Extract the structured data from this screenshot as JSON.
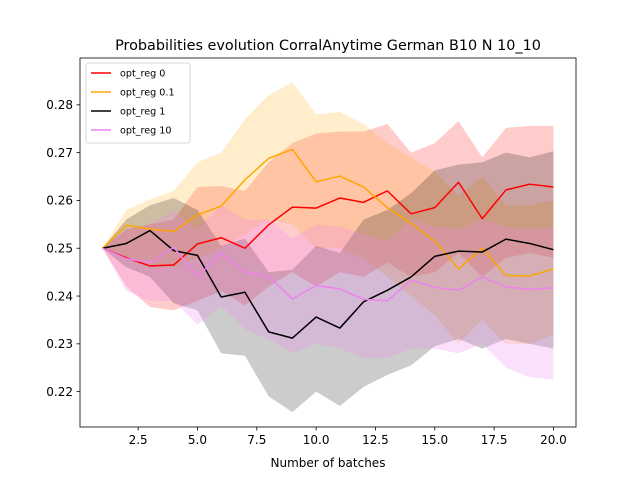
{
  "chart_data": {
    "type": "line",
    "title": "Probabilities evolution CorralAnytime German B10 N 10_10",
    "xlabel": "Number of batches",
    "ylabel": "",
    "xlim": [
      0.05,
      20.95
    ],
    "ylim": [
      0.2126,
      0.2898
    ],
    "xticks": [
      2.5,
      5.0,
      7.5,
      10.0,
      12.5,
      15.0,
      17.5,
      20.0
    ],
    "xtick_labels": [
      "2.5",
      "5.0",
      "7.5",
      "10.0",
      "12.5",
      "15.0",
      "17.5",
      "20.0"
    ],
    "yticks": [
      0.22,
      0.23,
      0.24,
      0.25,
      0.26,
      0.27,
      0.28
    ],
    "ytick_labels": [
      "0.22",
      "0.23",
      "0.24",
      "0.25",
      "0.26",
      "0.27",
      "0.28"
    ],
    "legend_position": "top-left",
    "x": [
      1,
      2,
      3,
      4,
      5,
      6,
      7,
      8,
      9,
      10,
      11,
      12,
      13,
      14,
      15,
      16,
      17,
      18,
      19,
      20
    ],
    "series": [
      {
        "name": "opt_reg 0",
        "color": "#ff0000",
        "band_alpha": 0.2,
        "values": [
          0.25,
          0.248,
          0.2463,
          0.2465,
          0.2509,
          0.2522,
          0.25,
          0.2549,
          0.2586,
          0.2584,
          0.2605,
          0.2596,
          0.262,
          0.2572,
          0.2585,
          0.2638,
          0.2562,
          0.2622,
          0.2634,
          0.2628
        ],
        "lower": [
          0.25,
          0.242,
          0.2377,
          0.237,
          0.239,
          0.241,
          0.238,
          0.242,
          0.245,
          0.242,
          0.245,
          0.244,
          0.247,
          0.244,
          0.245,
          0.249,
          0.244,
          0.248,
          0.249,
          0.248
        ],
        "upper": [
          0.25,
          0.254,
          0.255,
          0.256,
          0.2628,
          0.263,
          0.262,
          0.268,
          0.272,
          0.274,
          0.2744,
          0.2744,
          0.276,
          0.27,
          0.272,
          0.2766,
          0.269,
          0.2752,
          0.2756,
          0.2756
        ]
      },
      {
        "name": "opt_reg 0.1",
        "color": "#ffa500",
        "band_alpha": 0.2,
        "values": [
          0.25,
          0.2548,
          0.254,
          0.2535,
          0.257,
          0.2588,
          0.2643,
          0.2688,
          0.2707,
          0.2639,
          0.2651,
          0.2628,
          0.2585,
          0.2552,
          0.2515,
          0.2457,
          0.25,
          0.2443,
          0.2442,
          0.2457
        ],
        "lower": [
          0.25,
          0.248,
          0.246,
          0.246,
          0.248,
          0.25,
          0.253,
          0.256,
          0.255,
          0.25,
          0.25,
          0.248,
          0.244,
          0.24,
          0.236,
          0.23,
          0.235,
          0.23,
          0.23,
          0.232
        ],
        "upper": [
          0.25,
          0.258,
          0.2602,
          0.262,
          0.268,
          0.27,
          0.277,
          0.282,
          0.2847,
          0.278,
          0.2785,
          0.276,
          0.272,
          0.269,
          0.266,
          0.261,
          0.265,
          0.259,
          0.259,
          0.26
        ]
      },
      {
        "name": "opt_reg 1",
        "color": "#000000",
        "band_alpha": 0.2,
        "values": [
          0.25,
          0.251,
          0.2537,
          0.2495,
          0.2485,
          0.2398,
          0.2408,
          0.2325,
          0.2312,
          0.2356,
          0.2333,
          0.2388,
          0.2412,
          0.244,
          0.2483,
          0.2494,
          0.2492,
          0.2519,
          0.251,
          0.2497
        ],
        "lower": [
          0.25,
          0.246,
          0.244,
          0.2385,
          0.237,
          0.228,
          0.2275,
          0.219,
          0.2157,
          0.22,
          0.217,
          0.221,
          0.2235,
          0.2255,
          0.2295,
          0.231,
          0.229,
          0.231,
          0.23,
          0.229
        ],
        "upper": [
          0.25,
          0.256,
          0.259,
          0.2605,
          0.258,
          0.2505,
          0.252,
          0.245,
          0.2455,
          0.2505,
          0.249,
          0.256,
          0.258,
          0.2615,
          0.2663,
          0.2675,
          0.268,
          0.27,
          0.269,
          0.2703
        ]
      },
      {
        "name": "opt_reg 10",
        "color": "#ee82ee",
        "band_alpha": 0.25,
        "values": [
          0.25,
          0.2478,
          0.247,
          0.2502,
          0.244,
          0.249,
          0.245,
          0.2441,
          0.2394,
          0.2422,
          0.2415,
          0.2393,
          0.239,
          0.2433,
          0.2418,
          0.2412,
          0.244,
          0.2419,
          0.2414,
          0.2417
        ],
        "lower": [
          0.25,
          0.241,
          0.239,
          0.239,
          0.234,
          0.238,
          0.233,
          0.231,
          0.228,
          0.23,
          0.229,
          0.227,
          0.227,
          0.229,
          0.229,
          0.228,
          0.23,
          0.225,
          0.223,
          0.2225
        ],
        "upper": [
          0.25,
          0.254,
          0.255,
          0.258,
          0.254,
          0.259,
          0.256,
          0.256,
          0.252,
          0.255,
          0.2545,
          0.253,
          0.2515,
          0.256,
          0.2545,
          0.254,
          0.256,
          0.2545,
          0.254,
          0.2545
        ]
      }
    ]
  }
}
